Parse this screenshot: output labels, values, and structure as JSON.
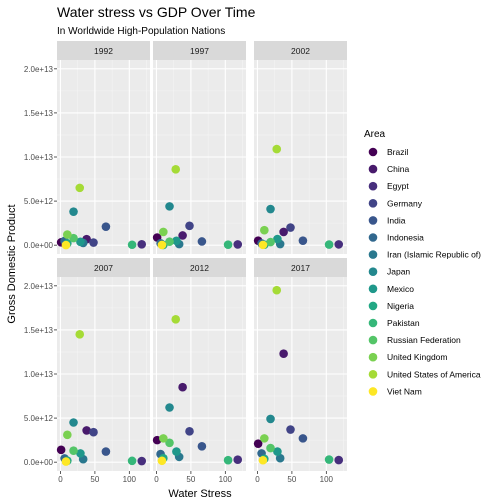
{
  "chart_data": {
    "type": "scatter",
    "title": "Water stress vs GDP Over Time",
    "subtitle": "In Worldwide High-Population Nations",
    "xlabel": "Water Stress",
    "ylabel": "Gross Domestic Product",
    "xlim": [
      -5,
      130
    ],
    "ylim": [
      -1000000000000.0,
      21000000000000.0
    ],
    "x_ticks": [
      0,
      50,
      100
    ],
    "x_tick_labels": [
      "0",
      "50",
      "100"
    ],
    "y_ticks": [
      0,
      5000000000000.0,
      10000000000000.0,
      15000000000000.0,
      20000000000000.0
    ],
    "y_tick_labels": [
      "0.0e+00",
      "5.0e+12",
      "1.0e+13",
      "1.5e+13",
      "2.0e+13"
    ],
    "legend": {
      "title": "Area",
      "position": "right",
      "entries": [
        "Brazil",
        "China",
        "Egypt",
        "Germany",
        "India",
        "Indonesia",
        "Iran (Islamic Republic of)",
        "Japan",
        "Mexico",
        "Nigeria",
        "Pakistan",
        "Russian Federation",
        "United Kingdom",
        "United States of America",
        "Viet Nam"
      ]
    },
    "colors": [
      "#440154",
      "#481a6c",
      "#472f7d",
      "#414487",
      "#39568c",
      "#31688e",
      "#2a788e",
      "#23888e",
      "#1f988b",
      "#22a884",
      "#35b779",
      "#54c568",
      "#7ad151",
      "#a5db36",
      "#fde725"
    ],
    "grid": true,
    "panels": [
      {
        "label": "1992",
        "points": [
          {
            "area": "Brazil",
            "x": 1,
            "y": 320000000000.0
          },
          {
            "area": "China",
            "x": 38,
            "y": 680000000000.0
          },
          {
            "area": "Egypt",
            "x": 118,
            "y": 100000000000.0
          },
          {
            "area": "Germany",
            "x": 48,
            "y": 300000000000.0
          },
          {
            "area": "India",
            "x": 66,
            "y": 2100000000000.0
          },
          {
            "area": "Indonesia",
            "x": 6,
            "y": 480000000000.0
          },
          {
            "area": "Iran (Islamic Republic of)",
            "x": 33,
            "y": 250000000000.0
          },
          {
            "area": "Japan",
            "x": 19,
            "y": 3800000000000.0
          },
          {
            "area": "Mexico",
            "x": 29,
            "y": 380000000000.0
          },
          {
            "area": "Nigeria",
            "x": 10,
            "y": 200000000000.0
          },
          {
            "area": "Pakistan",
            "x": 104,
            "y": 50000000000.0
          },
          {
            "area": "Russian Federation",
            "x": 19,
            "y": 800000000000.0
          },
          {
            "area": "United Kingdom",
            "x": 10,
            "y": 1200000000000.0
          },
          {
            "area": "United States of America",
            "x": 28,
            "y": 6500000000000.0
          },
          {
            "area": "Viet Nam",
            "x": 8,
            "y": 10000000000.0
          }
        ]
      },
      {
        "label": "1997",
        "points": [
          {
            "area": "Brazil",
            "x": 1,
            "y": 870000000000.0
          },
          {
            "area": "China",
            "x": 38,
            "y": 1100000000000.0
          },
          {
            "area": "Egypt",
            "x": 118,
            "y": 80000000000.0
          },
          {
            "area": "Germany",
            "x": 48,
            "y": 2200000000000.0
          },
          {
            "area": "India",
            "x": 66,
            "y": 420000000000.0
          },
          {
            "area": "Indonesia",
            "x": 6,
            "y": 210000000000.0
          },
          {
            "area": "Iran (Islamic Republic of)",
            "x": 33,
            "y": 120000000000.0
          },
          {
            "area": "Japan",
            "x": 19,
            "y": 4400000000000.0
          },
          {
            "area": "Mexico",
            "x": 29,
            "y": 500000000000.0
          },
          {
            "area": "Nigeria",
            "x": 10,
            "y": 30000000000.0
          },
          {
            "area": "Pakistan",
            "x": 104,
            "y": 60000000000.0
          },
          {
            "area": "Russian Federation",
            "x": 19,
            "y": 400000000000.0
          },
          {
            "area": "United Kingdom",
            "x": 10,
            "y": 1500000000000.0
          },
          {
            "area": "United States of America",
            "x": 28,
            "y": 8600000000000.0
          },
          {
            "area": "Viet Nam",
            "x": 8,
            "y": 25000000000.0
          }
        ]
      },
      {
        "label": "2002",
        "points": [
          {
            "area": "Brazil",
            "x": 1,
            "y": 510000000000.0
          },
          {
            "area": "China",
            "x": 38,
            "y": 1500000000000.0
          },
          {
            "area": "Egypt",
            "x": 118,
            "y": 90000000000.0
          },
          {
            "area": "Germany",
            "x": 48,
            "y": 2000000000000.0
          },
          {
            "area": "India",
            "x": 66,
            "y": 510000000000.0
          },
          {
            "area": "Indonesia",
            "x": 6,
            "y": 200000000000.0
          },
          {
            "area": "Iran (Islamic Republic of)",
            "x": 33,
            "y": 130000000000.0
          },
          {
            "area": "Japan",
            "x": 19,
            "y": 4100000000000.0
          },
          {
            "area": "Mexico",
            "x": 29,
            "y": 700000000000.0
          },
          {
            "area": "Nigeria",
            "x": 10,
            "y": 60000000000.0
          },
          {
            "area": "Pakistan",
            "x": 104,
            "y": 70000000000.0
          },
          {
            "area": "Russian Federation",
            "x": 19,
            "y": 350000000000.0
          },
          {
            "area": "United Kingdom",
            "x": 10,
            "y": 1700000000000.0
          },
          {
            "area": "United States of America",
            "x": 28,
            "y": 10900000000000.0
          },
          {
            "area": "Viet Nam",
            "x": 8,
            "y": 35000000000.0
          }
        ]
      },
      {
        "label": "2007",
        "points": [
          {
            "area": "Brazil",
            "x": 1,
            "y": 1400000000000.0
          },
          {
            "area": "China",
            "x": 38,
            "y": 3600000000000.0
          },
          {
            "area": "Egypt",
            "x": 118,
            "y": 130000000000.0
          },
          {
            "area": "Germany",
            "x": 48,
            "y": 3400000000000.0
          },
          {
            "area": "India",
            "x": 66,
            "y": 1200000000000.0
          },
          {
            "area": "Indonesia",
            "x": 6,
            "y": 430000000000.0
          },
          {
            "area": "Iran (Islamic Republic of)",
            "x": 33,
            "y": 340000000000.0
          },
          {
            "area": "Japan",
            "x": 19,
            "y": 4500000000000.0
          },
          {
            "area": "Mexico",
            "x": 29,
            "y": 1000000000000.0
          },
          {
            "area": "Nigeria",
            "x": 10,
            "y": 170000000000.0
          },
          {
            "area": "Pakistan",
            "x": 104,
            "y": 150000000000.0
          },
          {
            "area": "Russian Federation",
            "x": 19,
            "y": 1300000000000.0
          },
          {
            "area": "United Kingdom",
            "x": 10,
            "y": 3100000000000.0
          },
          {
            "area": "United States of America",
            "x": 28,
            "y": 14500000000000.0
          },
          {
            "area": "Viet Nam",
            "x": 8,
            "y": 70000000000.0
          }
        ]
      },
      {
        "label": "2012",
        "points": [
          {
            "area": "Brazil",
            "x": 1,
            "y": 2500000000000.0
          },
          {
            "area": "China",
            "x": 38,
            "y": 8500000000000.0
          },
          {
            "area": "Egypt",
            "x": 118,
            "y": 280000000000.0
          },
          {
            "area": "Germany",
            "x": 48,
            "y": 3500000000000.0
          },
          {
            "area": "India",
            "x": 66,
            "y": 1800000000000.0
          },
          {
            "area": "Indonesia",
            "x": 6,
            "y": 920000000000.0
          },
          {
            "area": "Iran (Islamic Republic of)",
            "x": 33,
            "y": 600000000000.0
          },
          {
            "area": "Japan",
            "x": 19,
            "y": 6200000000000.0
          },
          {
            "area": "Mexico",
            "x": 29,
            "y": 1200000000000.0
          },
          {
            "area": "Nigeria",
            "x": 10,
            "y": 460000000000.0
          },
          {
            "area": "Pakistan",
            "x": 104,
            "y": 230000000000.0
          },
          {
            "area": "Russian Federation",
            "x": 19,
            "y": 2200000000000.0
          },
          {
            "area": "United Kingdom",
            "x": 10,
            "y": 2700000000000.0
          },
          {
            "area": "United States of America",
            "x": 28,
            "y": 16200000000000.0
          },
          {
            "area": "Viet Nam",
            "x": 8,
            "y": 160000000000.0
          }
        ]
      },
      {
        "label": "2017",
        "points": [
          {
            "area": "Brazil",
            "x": 1,
            "y": 2100000000000.0
          },
          {
            "area": "China",
            "x": 38,
            "y": 12300000000000.0
          },
          {
            "area": "Egypt",
            "x": 118,
            "y": 240000000000.0
          },
          {
            "area": "Germany",
            "x": 48,
            "y": 3700000000000.0
          },
          {
            "area": "India",
            "x": 66,
            "y": 2700000000000.0
          },
          {
            "area": "Indonesia",
            "x": 6,
            "y": 1000000000000.0
          },
          {
            "area": "Iran (Islamic Republic of)",
            "x": 33,
            "y": 450000000000.0
          },
          {
            "area": "Japan",
            "x": 19,
            "y": 4900000000000.0
          },
          {
            "area": "Mexico",
            "x": 29,
            "y": 1200000000000.0
          },
          {
            "area": "Nigeria",
            "x": 10,
            "y": 380000000000.0
          },
          {
            "area": "Pakistan",
            "x": 104,
            "y": 300000000000.0
          },
          {
            "area": "Russian Federation",
            "x": 19,
            "y": 1600000000000.0
          },
          {
            "area": "United Kingdom",
            "x": 10,
            "y": 2700000000000.0
          },
          {
            "area": "United States of America",
            "x": 28,
            "y": 19500000000000.0
          },
          {
            "area": "Viet Nam",
            "x": 8,
            "y": 220000000000.0
          }
        ]
      }
    ]
  }
}
